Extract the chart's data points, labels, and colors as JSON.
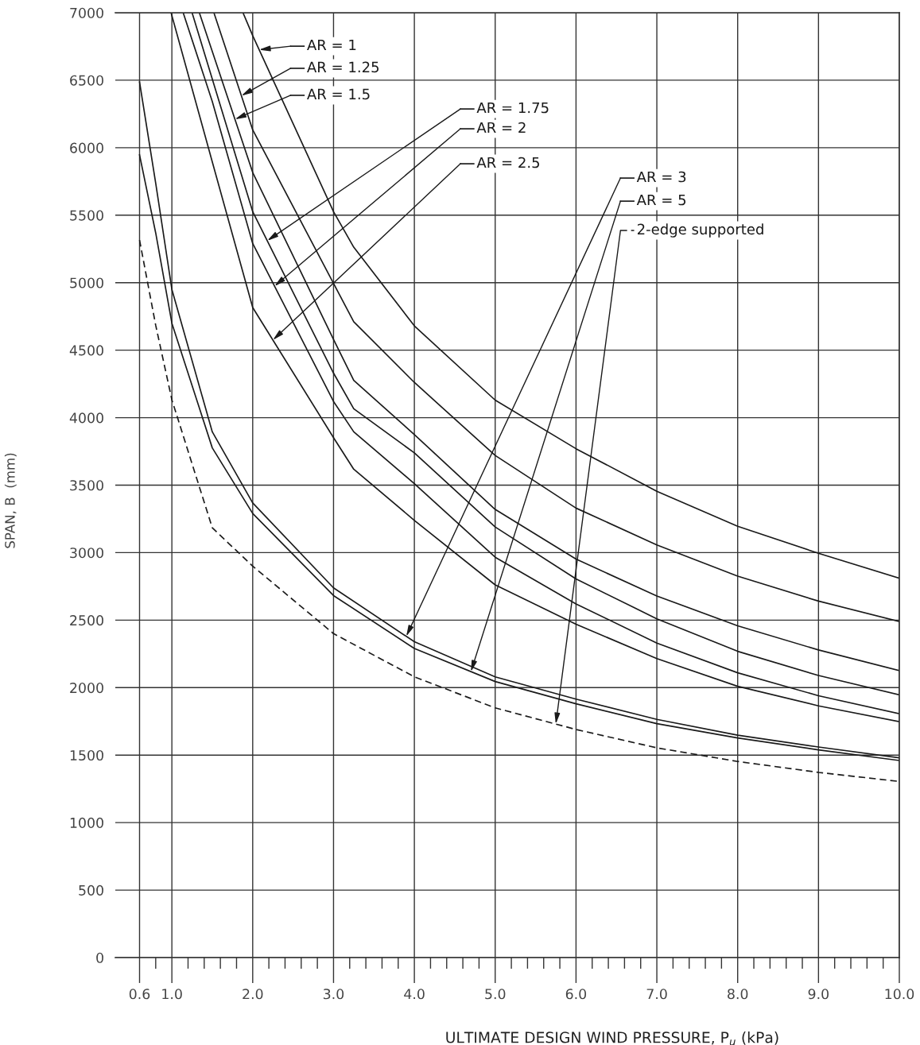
{
  "chart_data": {
    "type": "line",
    "xlabel": "ULTIMATE DESIGN WIND PRESSURE, P$_{u}$ (kPa)",
    "ylabel": "SPAN, B  (mm)",
    "xlim": [
      0.3,
      10
    ],
    "ylim": [
      0,
      7000
    ],
    "xticks": [
      0.6,
      {
        "value": 0.8,
        "label": null
      },
      {
        "value": 1,
        "label": "1.0"
      },
      {
        "value": 1.2,
        "label": null
      },
      {
        "value": 1.4,
        "label": null
      },
      {
        "value": 1.6,
        "label": null
      },
      {
        "value": 1.8,
        "label": null
      },
      {
        "value": 2,
        "label": "2.0"
      },
      {
        "value": 2.2,
        "label": null
      },
      {
        "value": 2.4,
        "label": null
      },
      {
        "value": 2.6,
        "label": null
      },
      {
        "value": 2.8,
        "label": null
      },
      {
        "value": 3,
        "label": "3.0"
      },
      {
        "value": 3.2,
        "label": null
      },
      {
        "value": 3.4,
        "label": null
      },
      {
        "value": 3.6,
        "label": null
      },
      {
        "value": 3.8,
        "label": null
      },
      {
        "value": 4,
        "label": "4.0"
      },
      {
        "value": 4.2,
        "label": null
      },
      {
        "value": 4.4,
        "label": null
      },
      {
        "value": 4.6,
        "label": null
      },
      {
        "value": 4.8,
        "label": null
      },
      {
        "value": 5,
        "label": "5.0"
      },
      {
        "value": 5.2,
        "label": null
      },
      {
        "value": 5.4,
        "label": null
      },
      {
        "value": 5.6,
        "label": null
      },
      {
        "value": 5.8,
        "label": null
      },
      {
        "value": 6,
        "label": "6.0"
      },
      {
        "value": 6.2,
        "label": null
      },
      {
        "value": 6.4,
        "label": null
      },
      {
        "value": 6.6,
        "label": null
      },
      {
        "value": 6.8,
        "label": null
      },
      {
        "value": 7,
        "label": "7.0"
      },
      {
        "value": 7.2,
        "label": null
      },
      {
        "value": 7.4,
        "label": null
      },
      {
        "value": 7.6,
        "label": null
      },
      {
        "value": 7.8,
        "label": null
      },
      {
        "value": 8,
        "label": "8.0"
      },
      {
        "value": 8.2,
        "label": null
      },
      {
        "value": 8.4,
        "label": null
      },
      {
        "value": 8.6,
        "label": null
      },
      {
        "value": 8.8,
        "label": null
      },
      {
        "value": 9,
        "label": "9.0"
      },
      {
        "value": 9.2,
        "label": null
      },
      {
        "value": 9.4,
        "label": null
      },
      {
        "value": 9.6,
        "label": null
      },
      {
        "value": 9.8,
        "label": null
      },
      {
        "value": 10,
        "label": "10.0"
      }
    ],
    "yticks": [
      0,
      500,
      1000,
      1500,
      2000,
      2500,
      3000,
      3500,
      4000,
      4500,
      5000,
      5500,
      6000,
      6500,
      7000
    ],
    "grid": true,
    "legend": "top",
    "marker": "none",
    "line_style": "solid",
    "series": [
      {
        "name": "AR = 1",
        "color": "#1a1a1a",
        "x": [
          1.88,
          2,
          3,
          3.25,
          4,
          5,
          6,
          7,
          8,
          9,
          10
        ],
        "values": [
          7000,
          6830,
          5526,
          5263,
          4680,
          4130,
          3770,
          3455,
          3195,
          2995,
          2810
        ]
      },
      {
        "name": "AR = 1.25",
        "color": "#1a1a1a",
        "x": [
          1.52,
          2,
          3,
          3.25,
          4,
          5,
          6,
          7,
          8,
          9,
          10
        ],
        "values": [
          7000,
          6132,
          4995,
          4711,
          4261,
          3720,
          3330,
          3057,
          2826,
          2641,
          2490
        ]
      },
      {
        "name": "AR = 1.5",
        "color": "#1a1a1a",
        "x": [
          1.34,
          2,
          3,
          3.25,
          4,
          5,
          6,
          7,
          8,
          9,
          10
        ],
        "values": [
          7000,
          5816,
          4580,
          4276,
          3875,
          3320,
          2952,
          2679,
          2458,
          2279,
          2126
        ]
      },
      {
        "name": "AR = 1.75",
        "color": "#1a1a1a",
        "x": [
          1.25,
          2,
          3,
          3.25,
          4,
          5,
          6,
          7,
          8,
          9,
          10
        ],
        "values": [
          7000,
          5526,
          4330,
          4066,
          3739,
          3190,
          2805,
          2510,
          2269,
          2090,
          1947
        ]
      },
      {
        "name": "AR = 2",
        "color": "#1a1a1a",
        "x": [
          1.14,
          1.5,
          2,
          3,
          3.25,
          4,
          5,
          6,
          7,
          8,
          9,
          10
        ],
        "values": [
          7000,
          6342,
          5290,
          4120,
          3895,
          3511,
          2966,
          2620,
          2330,
          2110,
          1940,
          1807
        ]
      },
      {
        "name": "AR = 2.5",
        "color": "#1a1a1a",
        "x": [
          0.99,
          1.5,
          2,
          3,
          3.25,
          4,
          5,
          6,
          7,
          8,
          9,
          10
        ],
        "values": [
          7000,
          5895,
          4816,
          3852,
          3618,
          3239,
          2761,
          2470,
          2215,
          2010,
          1865,
          1748
        ]
      },
      {
        "name": "AR = 3",
        "color": "#1a1a1a",
        "x": [
          0.6,
          0.8,
          1,
          1.5,
          2,
          3,
          4,
          5,
          6,
          7,
          8,
          9,
          10
        ],
        "values": [
          6487,
          5737,
          4950,
          3895,
          3368,
          2739,
          2340,
          2080,
          1915,
          1765,
          1648,
          1560,
          1480
        ]
      },
      {
        "name": "AR = 5",
        "color": "#1a1a1a",
        "x": [
          0.6,
          0.8,
          1,
          1.5,
          2,
          3,
          4,
          5,
          6,
          7,
          8,
          9,
          10
        ],
        "values": [
          5947,
          5368,
          4700,
          3776,
          3290,
          2682,
          2290,
          2045,
          1880,
          1733,
          1627,
          1539,
          1460
        ]
      },
      {
        "name": "2-edge supported",
        "color": "#1a1a1a",
        "line_style": "dashed",
        "x": [
          0.6,
          0.8,
          1,
          1.5,
          2,
          3,
          4,
          5,
          6,
          7,
          8,
          9,
          10
        ],
        "values": [
          5316,
          4684,
          4132,
          3184,
          2900,
          2400,
          2080,
          1850,
          1690,
          1554,
          1453,
          1372,
          1305
        ]
      }
    ]
  }
}
